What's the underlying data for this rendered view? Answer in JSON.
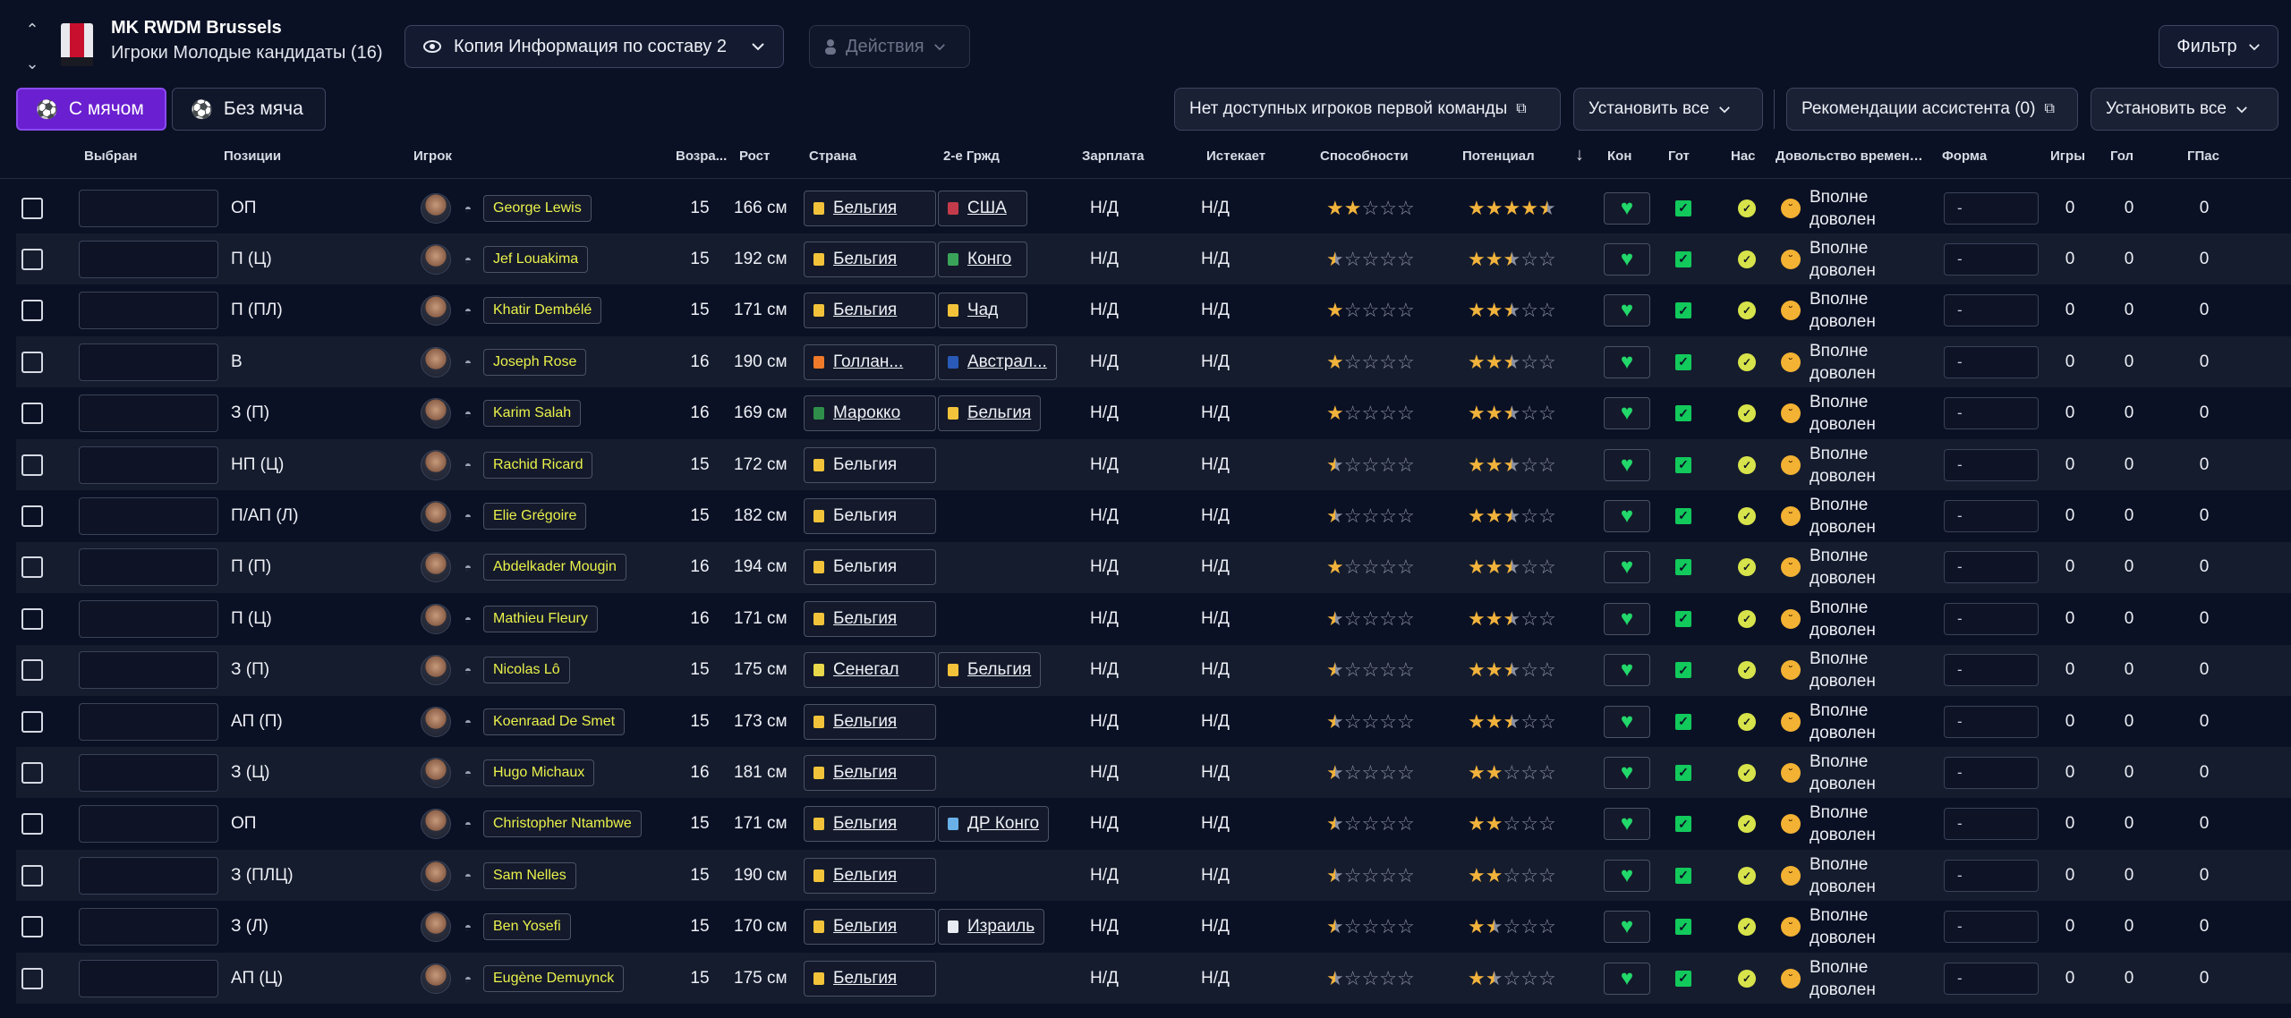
{
  "header": {
    "club_name": "MK RWDM Brussels",
    "subtitle": "Игроки Молодые кандидаты (16)",
    "view_select": "Копия Информация по составу 2",
    "actions_label": "Действия",
    "filter_label": "Фильтр"
  },
  "tabs": {
    "with_ball": "С мячом",
    "without_ball": "Без мяча"
  },
  "toolbar": {
    "no_first_team": "Нет доступных игроков первой команды",
    "set_all_1": "Установить все",
    "assistant": "Рекомендации ассистента (0)",
    "set_all_2": "Установить все"
  },
  "columns": {
    "selected": "Выбран",
    "positions": "Позиции",
    "player": "Игрок",
    "age": "Возра...",
    "height": "Рост",
    "country": "Страна",
    "second_nat": "2-е Гржд",
    "wage": "Зарплата",
    "expires": "Истекает",
    "ability": "Способности",
    "potential": "Потенциал",
    "condition": "Кон",
    "fitness": "Гот",
    "sharpness": "Нас",
    "happiness": "Довольство временем на поле",
    "form": "Форма",
    "games": "Игры",
    "goals": "Гол",
    "assists": "ГПас"
  },
  "colors": {
    "accent": "#6a1fd0",
    "star": "#f2b33c",
    "name": "#eaf14a",
    "green": "#22d86a"
  },
  "rows": [
    {
      "pos": "ОП",
      "name": "George Lewis",
      "age": "15",
      "height": "166 см",
      "nat": "Бельгия",
      "nat2": "США",
      "wage": "Н/Д",
      "exp": "Н/Д",
      "ca": 2,
      "pa": 4.5,
      "happy": "Вполне доволен",
      "form": "-",
      "games": "0",
      "goals": "0",
      "assists": "0"
    },
    {
      "pos": "П (Ц)",
      "name": "Jef Louakima",
      "age": "15",
      "height": "192 см",
      "nat": "Бельгия",
      "nat2": "Конго",
      "wage": "Н/Д",
      "exp": "Н/Д",
      "ca": 0.5,
      "pa": 2.5,
      "happy": "Вполне доволен",
      "form": "-",
      "games": "0",
      "goals": "0",
      "assists": "0"
    },
    {
      "pos": "П (ПЛ)",
      "name": "Khatir Dembélé",
      "age": "15",
      "height": "171 см",
      "nat": "Бельгия",
      "nat2": "Чад",
      "wage": "Н/Д",
      "exp": "Н/Д",
      "ca": 1,
      "pa": 2.5,
      "happy": "Вполне доволен",
      "form": "-",
      "games": "0",
      "goals": "0",
      "assists": "0"
    },
    {
      "pos": "В",
      "name": "Joseph Rose",
      "age": "16",
      "height": "190 см",
      "nat": "Голлан...",
      "nat2": "Австрал...",
      "wage": "Н/Д",
      "exp": "Н/Д",
      "ca": 1,
      "pa": 2.5,
      "happy": "Вполне доволен",
      "form": "-",
      "games": "0",
      "goals": "0",
      "assists": "0"
    },
    {
      "pos": "З (П)",
      "name": "Karim Salah",
      "age": "16",
      "height": "169 см",
      "nat": "Марокко",
      "nat2": "Бельгия",
      "wage": "Н/Д",
      "exp": "Н/Д",
      "ca": 1,
      "pa": 2.5,
      "happy": "Вполне доволен",
      "form": "-",
      "games": "0",
      "goals": "0",
      "assists": "0"
    },
    {
      "pos": "НП (Ц)",
      "name": "Rachid Ricard",
      "age": "15",
      "height": "172 см",
      "nat": "Бельгия",
      "nat2": "",
      "wage": "Н/Д",
      "exp": "Н/Д",
      "ca": 0.5,
      "pa": 2.5,
      "happy": "Вполне доволен",
      "form": "-",
      "games": "0",
      "goals": "0",
      "assists": "0"
    },
    {
      "pos": "П/АП (Л)",
      "name": "Elie Grégoire",
      "age": "15",
      "height": "182 см",
      "nat": "Бельгия",
      "nat2": "",
      "wage": "Н/Д",
      "exp": "Н/Д",
      "ca": 0.5,
      "pa": 2.5,
      "happy": "Вполне доволен",
      "form": "-",
      "games": "0",
      "goals": "0",
      "assists": "0"
    },
    {
      "pos": "П (П)",
      "name": "Abdelkader Mougin",
      "age": "16",
      "height": "194 см",
      "nat": "Бельгия",
      "nat2": "",
      "wage": "Н/Д",
      "exp": "Н/Д",
      "ca": 1,
      "pa": 2.5,
      "happy": "Вполне доволен",
      "form": "-",
      "games": "0",
      "goals": "0",
      "assists": "0"
    },
    {
      "pos": "П (Ц)",
      "name": "Mathieu Fleury",
      "age": "16",
      "height": "171 см",
      "nat": "Бельгия",
      "nat2": "",
      "wage": "Н/Д",
      "exp": "Н/Д",
      "ca": 0.5,
      "pa": 2.5,
      "happy": "Вполне доволен",
      "form": "-",
      "games": "0",
      "goals": "0",
      "assists": "0"
    },
    {
      "pos": "З (П)",
      "name": "Nicolas Lô",
      "age": "15",
      "height": "175 см",
      "nat": "Сенегал",
      "nat2": "Бельгия",
      "wage": "Н/Д",
      "exp": "Н/Д",
      "ca": 0.5,
      "pa": 2.5,
      "happy": "Вполне доволен",
      "form": "-",
      "games": "0",
      "goals": "0",
      "assists": "0"
    },
    {
      "pos": "АП (П)",
      "name": "Koenraad De Smet",
      "age": "15",
      "height": "173 см",
      "nat": "Бельгия",
      "nat2": "",
      "wage": "Н/Д",
      "exp": "Н/Д",
      "ca": 0.5,
      "pa": 2.5,
      "happy": "Вполне доволен",
      "form": "-",
      "games": "0",
      "goals": "0",
      "assists": "0"
    },
    {
      "pos": "З (Ц)",
      "name": "Hugo Michaux",
      "age": "16",
      "height": "181 см",
      "nat": "Бельгия",
      "nat2": "",
      "wage": "Н/Д",
      "exp": "Н/Д",
      "ca": 0.5,
      "pa": 2,
      "happy": "Вполне доволен",
      "form": "-",
      "games": "0",
      "goals": "0",
      "assists": "0"
    },
    {
      "pos": "ОП",
      "name": "Christopher Ntambwe",
      "age": "15",
      "height": "171 см",
      "nat": "Бельгия",
      "nat2": "ДР Конго",
      "wage": "Н/Д",
      "exp": "Н/Д",
      "ca": 0.5,
      "pa": 2,
      "happy": "Вполне доволен",
      "form": "-",
      "games": "0",
      "goals": "0",
      "assists": "0"
    },
    {
      "pos": "З (ПЛЦ)",
      "name": "Sam Nelles",
      "age": "15",
      "height": "190 см",
      "nat": "Бельгия",
      "nat2": "",
      "wage": "Н/Д",
      "exp": "Н/Д",
      "ca": 0.5,
      "pa": 2,
      "happy": "Вполне доволен",
      "form": "-",
      "games": "0",
      "goals": "0",
      "assists": "0"
    },
    {
      "pos": "З (Л)",
      "name": "Ben Yosefi",
      "age": "15",
      "height": "170 см",
      "nat": "Бельгия",
      "nat2": "Израиль",
      "wage": "Н/Д",
      "exp": "Н/Д",
      "ca": 0.5,
      "pa": 1.5,
      "happy": "Вполне доволен",
      "form": "-",
      "games": "0",
      "goals": "0",
      "assists": "0"
    },
    {
      "pos": "АП (Ц)",
      "name": "Eugène Demuynck",
      "age": "15",
      "height": "175 см",
      "nat": "Бельгия",
      "nat2": "",
      "wage": "Н/Д",
      "exp": "Н/Д",
      "ca": 0.5,
      "pa": 1.5,
      "happy": "Вполне доволен",
      "form": "-",
      "games": "0",
      "goals": "0",
      "assists": "0"
    }
  ]
}
